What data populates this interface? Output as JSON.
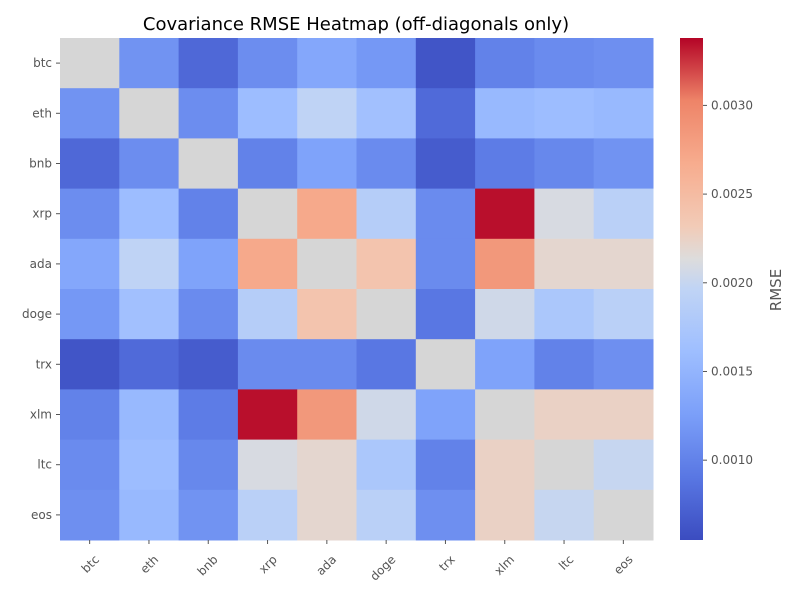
{
  "chart_data": {
    "type": "heatmap",
    "title": "Covariance RMSE Heatmap (off-diagonals only)",
    "x_categories": [
      "btc",
      "eth",
      "bnb",
      "xrp",
      "ada",
      "doge",
      "trx",
      "xlm",
      "ltc",
      "eos"
    ],
    "y_categories": [
      "btc",
      "eth",
      "bnb",
      "xrp",
      "ada",
      "doge",
      "trx",
      "xlm",
      "ltc",
      "eos"
    ],
    "diagonal_masked": true,
    "diagonal_color": "#d6d6d6",
    "values": [
      [
        null,
        0.00115,
        0.00078,
        0.0011,
        0.00135,
        0.0012,
        0.00062,
        0.001,
        0.00108,
        0.00112
      ],
      [
        0.00115,
        null,
        0.0011,
        0.0016,
        0.00195,
        0.00165,
        0.0008,
        0.00155,
        0.0016,
        0.00155
      ],
      [
        0.00078,
        0.0011,
        null,
        0.001,
        0.0013,
        0.00108,
        0.00068,
        0.00095,
        0.00105,
        0.00115
      ],
      [
        0.0011,
        0.0016,
        0.001,
        null,
        0.0027,
        0.00185,
        0.00108,
        0.00335,
        0.0021,
        0.0019
      ],
      [
        0.00135,
        0.00195,
        0.0013,
        0.0027,
        null,
        0.0024,
        0.00108,
        0.00285,
        0.0022,
        0.0022
      ],
      [
        0.0012,
        0.00165,
        0.00108,
        0.00185,
        0.0024,
        null,
        0.0009,
        0.00205,
        0.00175,
        0.0019
      ],
      [
        0.00062,
        0.0008,
        0.00068,
        0.00108,
        0.00108,
        0.0009,
        null,
        0.0013,
        0.001,
        0.00112
      ],
      [
        0.001,
        0.00155,
        0.00095,
        0.00335,
        0.00285,
        0.00205,
        0.0013,
        null,
        0.00225,
        0.00225
      ],
      [
        0.00108,
        0.0016,
        0.00105,
        0.0021,
        0.0022,
        0.00175,
        0.001,
        0.00225,
        null,
        0.002
      ],
      [
        0.00112,
        0.00155,
        0.00115,
        0.0019,
        0.0022,
        0.0019,
        0.00112,
        0.00225,
        0.002,
        null
      ]
    ],
    "colormap": "coolwarm",
    "vmin": 0.00055,
    "vmax": 0.00338,
    "colorbar": {
      "label": "RMSE",
      "ticks": [
        0.001,
        0.0015,
        0.002,
        0.0025,
        0.003
      ],
      "tick_labels": [
        "0.0010",
        "0.0015",
        "0.0020",
        "0.0025",
        "0.0030"
      ]
    },
    "grid": false
  }
}
